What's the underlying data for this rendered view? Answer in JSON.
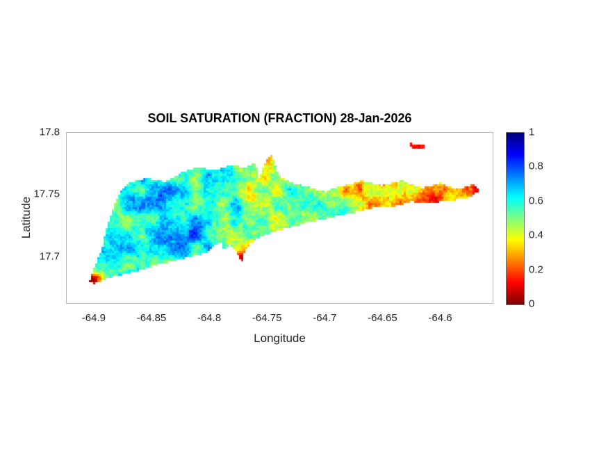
{
  "style": {
    "background": "#ffffff",
    "title_color": "#000000",
    "text_color": "#262626",
    "axis_box_color": "#b8b8b8"
  },
  "chart_data": {
    "type": "heatmap",
    "title": "SOIL SATURATION (FRACTION) 28-Jan-2026",
    "xlabel": "Longitude",
    "ylabel": "Latitude",
    "region": "island landmass (St. Croix shaped outline)",
    "legend_position": "colorbar-right",
    "grid": false,
    "xlim": [
      -64.924,
      -64.554
    ],
    "ylim": [
      17.662,
      17.8
    ],
    "xticks": {
      "values": [
        -64.9,
        -64.85,
        -64.8,
        -64.75,
        -64.7,
        -64.65,
        -64.6
      ],
      "labels": [
        "-64.9",
        "-64.85",
        "-64.8",
        "-64.75",
        "-64.7",
        "-64.65",
        "-64.6"
      ]
    },
    "yticks": {
      "values": [
        17.8,
        17.75,
        17.7
      ],
      "labels": [
        "17.8",
        "17.75",
        "17.7"
      ]
    },
    "colorbar": {
      "min": 0,
      "max": 1,
      "colormap": "jet reversed (0 = dark red, 0.2 = red-orange, 0.4 = yellow, 0.5 = green, 0.6 = cyan, 0.8 = blue, 1 = dark blue)",
      "color_low": "#7f0000",
      "color_mid": "#80ff80",
      "color_high": "#00007f",
      "ticks": {
        "values": [
          1,
          0.8,
          0.6,
          0.4,
          0.2,
          0
        ],
        "labels": [
          "1",
          "0.8",
          "0.6",
          "0.4",
          "0.2",
          "0"
        ]
      }
    },
    "base_saturation_by_longitude": [
      [
        -64.93,
        0.56
      ],
      [
        -64.89,
        0.6
      ],
      [
        -64.85,
        0.62
      ],
      [
        -64.81,
        0.62
      ],
      [
        -64.77,
        0.55
      ],
      [
        -64.73,
        0.52
      ],
      [
        -64.69,
        0.46
      ],
      [
        -64.65,
        0.38
      ],
      [
        -64.61,
        0.34
      ],
      [
        -64.57,
        0.34
      ],
      [
        -64.54,
        0.36
      ]
    ],
    "local_anomalies": [
      [
        -64.825,
        17.715,
        0.14,
        0.03,
        0.016
      ],
      [
        -64.67,
        17.753,
        -0.1,
        0.035,
        0.01
      ],
      [
        -64.773,
        17.699,
        -0.4,
        0.006,
        0.006
      ],
      [
        -64.9,
        17.681,
        -0.5,
        0.008,
        0.005
      ],
      [
        -64.606,
        17.744,
        -0.25,
        0.01,
        0.006
      ],
      [
        -64.752,
        17.779,
        -0.22,
        0.007,
        0.005
      ],
      [
        -64.762,
        17.768,
        -0.1,
        0.03,
        0.012
      ],
      [
        -64.78,
        17.708,
        -0.08,
        0.03,
        0.008
      ],
      [
        -64.57,
        17.754,
        -0.18,
        0.01,
        0.006
      ]
    ],
    "island_outline": [
      [
        -64.904,
        17.68
      ],
      [
        -64.899,
        17.692
      ],
      [
        -64.893,
        17.706
      ],
      [
        -64.889,
        17.722
      ],
      [
        -64.884,
        17.737
      ],
      [
        -64.877,
        17.752
      ],
      [
        -64.868,
        17.76
      ],
      [
        -64.853,
        17.763
      ],
      [
        -64.838,
        17.76
      ],
      [
        -64.823,
        17.768
      ],
      [
        -64.809,
        17.772
      ],
      [
        -64.795,
        17.769
      ],
      [
        -64.781,
        17.774
      ],
      [
        -64.769,
        17.771
      ],
      [
        -64.76,
        17.776
      ],
      [
        -64.757,
        17.763
      ],
      [
        -64.751,
        17.777
      ],
      [
        -64.746,
        17.782
      ],
      [
        -64.739,
        17.764
      ],
      [
        -64.728,
        17.759
      ],
      [
        -64.714,
        17.756
      ],
      [
        -64.7,
        17.752
      ],
      [
        -64.684,
        17.757
      ],
      [
        -64.667,
        17.761
      ],
      [
        -64.65,
        17.757
      ],
      [
        -64.633,
        17.761
      ],
      [
        -64.616,
        17.755
      ],
      [
        -64.6,
        17.759
      ],
      [
        -64.585,
        17.754
      ],
      [
        -64.571,
        17.758
      ],
      [
        -64.565,
        17.753
      ],
      [
        -64.576,
        17.747
      ],
      [
        -64.591,
        17.745
      ],
      [
        -64.608,
        17.743
      ],
      [
        -64.625,
        17.744
      ],
      [
        -64.641,
        17.74
      ],
      [
        -64.658,
        17.739
      ],
      [
        -64.676,
        17.735
      ],
      [
        -64.696,
        17.731
      ],
      [
        -64.716,
        17.727
      ],
      [
        -64.736,
        17.722
      ],
      [
        -64.753,
        17.717
      ],
      [
        -64.764,
        17.711
      ],
      [
        -64.769,
        17.704
      ],
      [
        -64.772,
        17.695
      ],
      [
        -64.777,
        17.704
      ],
      [
        -64.783,
        17.71
      ],
      [
        -64.787,
        17.704
      ],
      [
        -64.789,
        17.712
      ],
      [
        -64.796,
        17.709
      ],
      [
        -64.801,
        17.703
      ],
      [
        -64.816,
        17.7
      ],
      [
        -64.831,
        17.696
      ],
      [
        -64.847,
        17.693
      ],
      [
        -64.863,
        17.688
      ],
      [
        -64.877,
        17.685
      ],
      [
        -64.89,
        17.682
      ],
      [
        -64.899,
        17.678
      ]
    ],
    "offshore_islet_outline": [
      [
        -64.627,
        17.791
      ],
      [
        -64.613,
        17.79
      ],
      [
        -64.615,
        17.786
      ],
      [
        -64.624,
        17.787
      ]
    ],
    "offshore_islet_value": 0.12
  }
}
